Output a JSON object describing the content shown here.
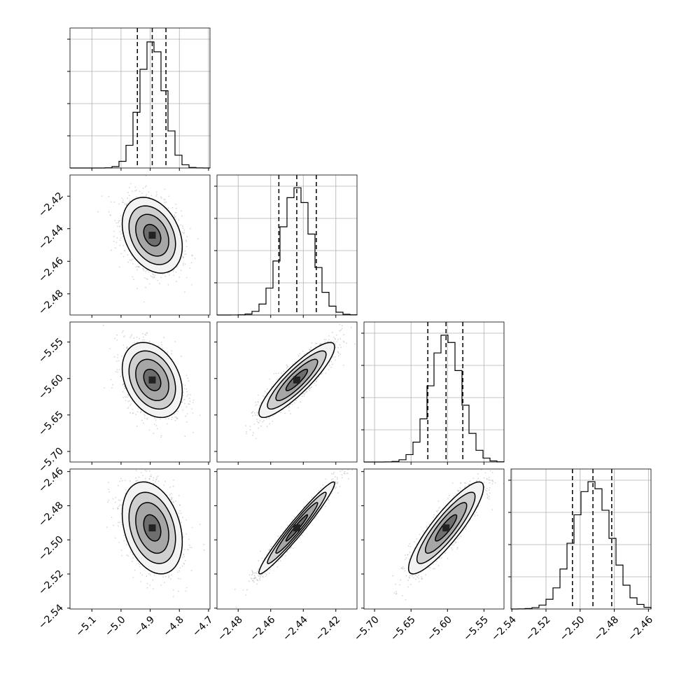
{
  "chart_data": {
    "type": "corner",
    "parameters": [
      {
        "ticks": [
          -5.1,
          -5.0,
          -4.9,
          -4.8,
          -4.7
        ],
        "tick_labels": [
          "−5.1",
          "−5.0",
          "−4.9",
          "−4.8",
          "−4.7"
        ],
        "range": [
          -5.175,
          -4.695
        ],
        "mean": -4.893,
        "sigma": 0.042,
        "quantiles": [
          -4.944,
          -4.893,
          -4.846
        ]
      },
      {
        "ticks": [
          -2.48,
          -2.46,
          -2.44,
          -2.42
        ],
        "tick_labels": [
          "−2.48",
          "−2.46",
          "−2.44",
          "−2.42"
        ],
        "range": [
          -2.493,
          -2.407
        ],
        "mean": -2.444,
        "sigma": 0.0095,
        "quantiles": [
          -2.455,
          -2.444,
          -2.432
        ]
      },
      {
        "ticks": [
          -5.7,
          -5.65,
          -5.6,
          -5.55
        ],
        "tick_labels": [
          "−5.70",
          "−5.65",
          "−5.60",
          "−5.55"
        ],
        "range": [
          -5.7145,
          -5.5225
        ],
        "mean": -5.602,
        "sigma": 0.021,
        "quantiles": [
          -5.627,
          -5.602,
          -5.579
        ]
      },
      {
        "ticks": [
          -2.54,
          -2.52,
          -2.5,
          -2.48,
          -2.46
        ],
        "tick_labels": [
          "−2.54",
          "−2.52",
          "−2.50",
          "−2.48",
          "−2.46"
        ],
        "range": [
          -2.5405,
          -2.4585
        ],
        "mean": -2.493,
        "sigma": 0.011,
        "quantiles": [
          -2.5045,
          -2.4925,
          -2.4815
        ]
      }
    ],
    "correlations": {
      "1-0": -0.3,
      "2-0": -0.3,
      "2-1": 0.88,
      "3-0": -0.3,
      "3-1": 0.97,
      "3-2": 0.88
    },
    "grid": true,
    "colors": {
      "line": "#000000",
      "grid": "#b0b0b0",
      "scatter": "#b4b4b4"
    }
  }
}
